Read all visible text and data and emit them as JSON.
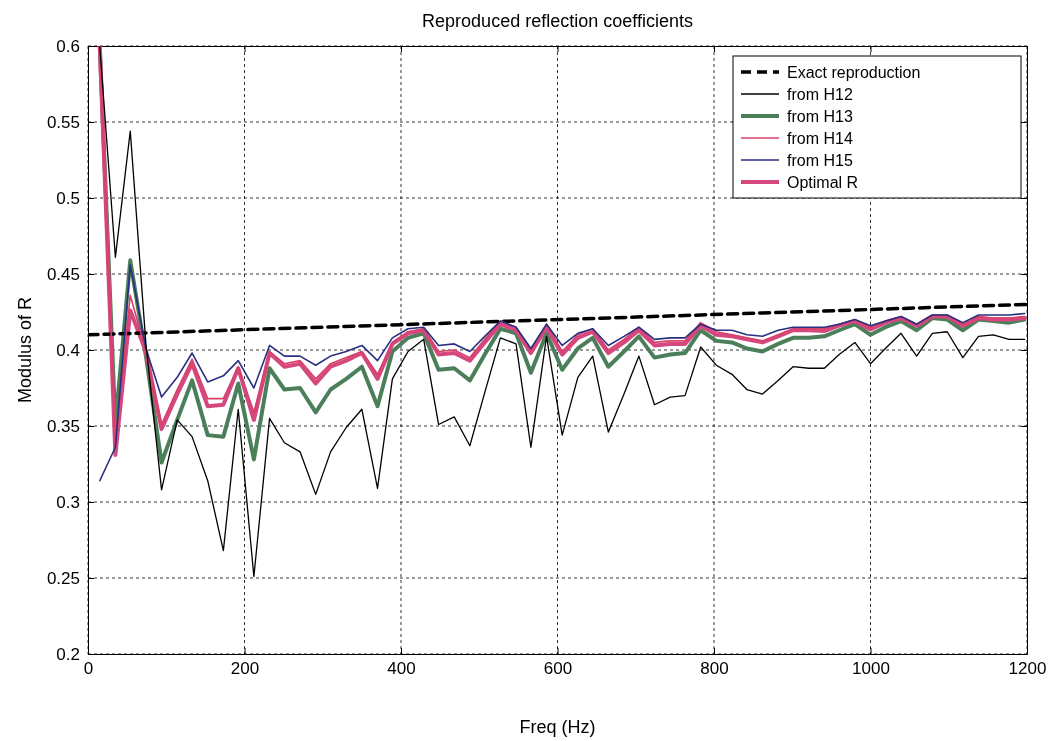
{
  "chart_data": {
    "type": "line",
    "title": "Reproduced reflection coefficients",
    "xlabel": "Freq (Hz)",
    "ylabel": "Modulus of R",
    "x": [
      15,
      35,
      54,
      74,
      94,
      114,
      133,
      153,
      173,
      192,
      212,
      232,
      251,
      271,
      291,
      310,
      330,
      350,
      370,
      389,
      409,
      429,
      448,
      468,
      488,
      507,
      527,
      547,
      566,
      586,
      606,
      626,
      645,
      665,
      685,
      704,
      724,
      744,
      763,
      783,
      803,
      823,
      842,
      862,
      882,
      901,
      921,
      941,
      960,
      980,
      1000,
      1019,
      1039,
      1059,
      1079,
      1098,
      1118,
      1138,
      1157,
      1177,
      1197
    ],
    "series": [
      {
        "name": "Exact reproduction",
        "color": "#000000",
        "line_style": "dashed",
        "x": [
          0,
          1200
        ],
        "values": [
          0.41,
          0.43
        ]
      },
      {
        "name": "from H12",
        "color": "#000000",
        "values": [
          0.6,
          0.461,
          0.544,
          0.404,
          0.308,
          0.354,
          0.343,
          0.314,
          0.268,
          0.361,
          0.251,
          0.355,
          0.339,
          0.333,
          0.305,
          0.333,
          0.349,
          0.361,
          0.309,
          0.381,
          0.399,
          0.407,
          0.351,
          0.356,
          0.337,
          0.372,
          0.408,
          0.404,
          0.336,
          0.409,
          0.344,
          0.382,
          0.396,
          0.346,
          0.371,
          0.396,
          0.364,
          0.369,
          0.37,
          0.402,
          0.39,
          0.384,
          0.374,
          0.371,
          0.38,
          0.389,
          0.388,
          0.388,
          0.397,
          0.405,
          0.391,
          0.401,
          0.411,
          0.396,
          0.411,
          0.412,
          0.395,
          0.409,
          0.41,
          0.407,
          0.407
        ]
      },
      {
        "name": "from H13",
        "color": "#4a7f5a",
        "values": [
          0.6,
          0.351,
          0.459,
          0.396,
          0.326,
          0.354,
          0.38,
          0.344,
          0.343,
          0.378,
          0.328,
          0.388,
          0.374,
          0.375,
          0.359,
          0.374,
          0.381,
          0.389,
          0.363,
          0.399,
          0.408,
          0.411,
          0.387,
          0.388,
          0.38,
          0.397,
          0.414,
          0.411,
          0.385,
          0.411,
          0.387,
          0.401,
          0.408,
          0.389,
          0.399,
          0.409,
          0.395,
          0.397,
          0.398,
          0.413,
          0.406,
          0.405,
          0.401,
          0.399,
          0.404,
          0.408,
          0.408,
          0.409,
          0.413,
          0.417,
          0.41,
          0.415,
          0.419,
          0.413,
          0.421,
          0.42,
          0.413,
          0.42,
          0.419,
          0.418,
          0.42
        ]
      },
      {
        "name": "from H14",
        "color": "#d9406a",
        "values": [
          0.6,
          0.341,
          0.436,
          0.399,
          0.351,
          0.374,
          0.394,
          0.368,
          0.368,
          0.389,
          0.359,
          0.399,
          0.391,
          0.393,
          0.381,
          0.391,
          0.395,
          0.399,
          0.384,
          0.405,
          0.412,
          0.414,
          0.399,
          0.4,
          0.395,
          0.407,
          0.419,
          0.415,
          0.4,
          0.417,
          0.399,
          0.41,
          0.414,
          0.4,
          0.407,
          0.415,
          0.405,
          0.406,
          0.406,
          0.418,
          0.412,
          0.41,
          0.408,
          0.406,
          0.41,
          0.414,
          0.414,
          0.414,
          0.417,
          0.42,
          0.415,
          0.419,
          0.422,
          0.417,
          0.423,
          0.423,
          0.417,
          0.422,
          0.421,
          0.421,
          0.422
        ]
      },
      {
        "name": "from H15",
        "color": "#2a2f80",
        "values": [
          0.314,
          0.336,
          0.456,
          0.401,
          0.369,
          0.382,
          0.398,
          0.379,
          0.383,
          0.393,
          0.375,
          0.403,
          0.396,
          0.396,
          0.39,
          0.396,
          0.399,
          0.403,
          0.393,
          0.408,
          0.414,
          0.415,
          0.403,
          0.404,
          0.399,
          0.409,
          0.419,
          0.415,
          0.401,
          0.417,
          0.403,
          0.411,
          0.414,
          0.403,
          0.409,
          0.415,
          0.407,
          0.408,
          0.408,
          0.417,
          0.413,
          0.413,
          0.41,
          0.409,
          0.413,
          0.415,
          0.415,
          0.415,
          0.417,
          0.42,
          0.416,
          0.419,
          0.422,
          0.417,
          0.423,
          0.423,
          0.418,
          0.423,
          0.423,
          0.423,
          0.424
        ]
      },
      {
        "name": "Optimal R",
        "color": "#d4487e",
        "values": [
          0.6,
          0.331,
          0.426,
          0.399,
          0.348,
          0.371,
          0.391,
          0.363,
          0.364,
          0.388,
          0.354,
          0.398,
          0.389,
          0.391,
          0.378,
          0.389,
          0.393,
          0.398,
          0.381,
          0.404,
          0.411,
          0.413,
          0.397,
          0.398,
          0.393,
          0.405,
          0.417,
          0.413,
          0.398,
          0.415,
          0.397,
          0.408,
          0.412,
          0.398,
          0.405,
          0.413,
          0.403,
          0.404,
          0.404,
          0.416,
          0.41,
          0.409,
          0.407,
          0.405,
          0.409,
          0.413,
          0.413,
          0.4125,
          0.416,
          0.419,
          0.4135,
          0.418,
          0.421,
          0.416,
          0.422,
          0.422,
          0.416,
          0.421,
          0.42,
          0.42,
          0.421
        ]
      }
    ],
    "xlim": [
      0,
      1200
    ],
    "xticks": [
      0,
      200,
      400,
      600,
      800,
      1000,
      1200
    ],
    "ylim": [
      0.2,
      0.6
    ],
    "yticks": [
      0.2,
      0.25,
      0.3,
      0.35,
      0.4,
      0.45,
      0.5,
      0.55,
      0.6
    ],
    "grid": true,
    "legend": "top right",
    "marker": "none"
  }
}
